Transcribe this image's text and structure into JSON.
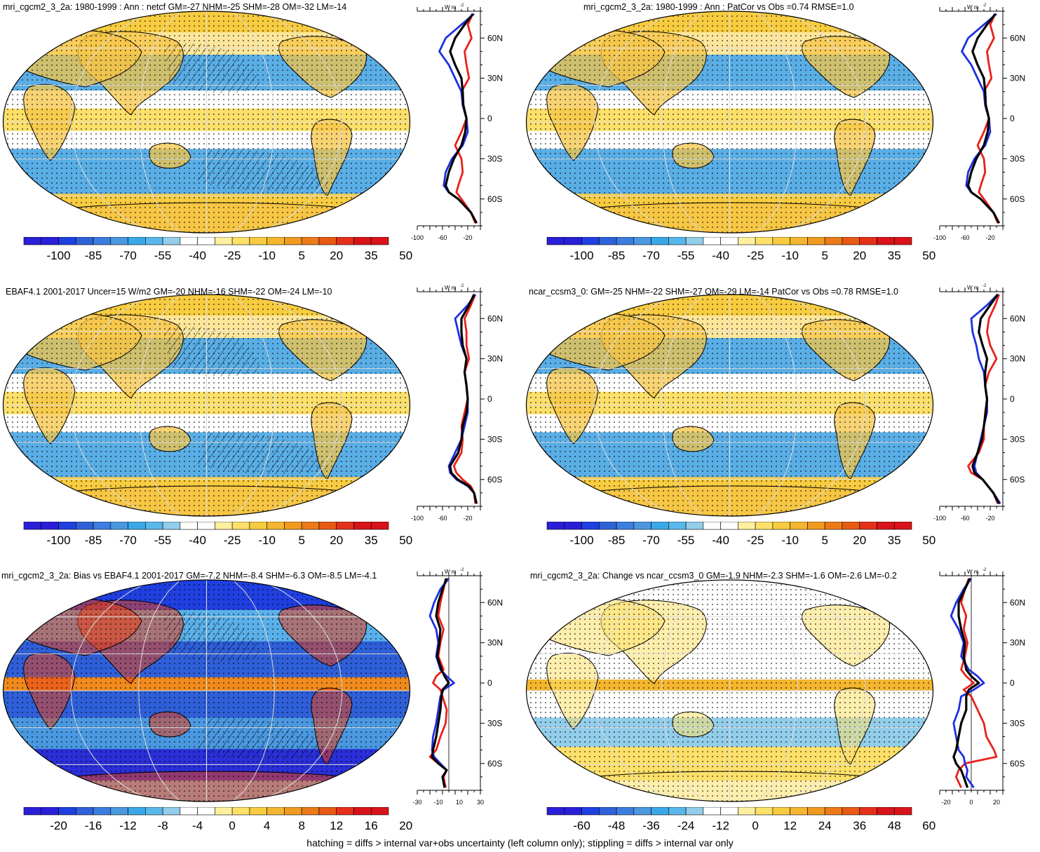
{
  "footer": "hatching = diffs > internal var+obs uncertainty (left column only); stippling = diffs > internal var only",
  "colors": {
    "palette": [
      "#2a1fd8",
      "#1f3fe0",
      "#2f62d8",
      "#3c7ee0",
      "#4a98e0",
      "#3aa8e8",
      "#58b8ec",
      "#92cdea",
      "#ffffff",
      "#ffffff",
      "#fff0a0",
      "#fce06a",
      "#f8cc40",
      "#f4b62e",
      "#f09a20",
      "#ec7a18",
      "#e85a14",
      "#e43018",
      "#d8141a"
    ],
    "ocean_neg": "#5aaee6",
    "land_pos": "#f6c445",
    "line_red": "#e8211b",
    "line_blue": "#1f2fe0",
    "line_black": "#000000"
  },
  "lat_ticks": [
    "60N",
    "30N",
    "0",
    "30S",
    "60S"
  ],
  "units_label": "W m",
  "units_exp": "-2",
  "chart_data": [
    {
      "type": "heatmap",
      "title": "mri_cgcm2_3_2a: 1980-1999 : Ann : netcf GM=-27 NHM=-25 SHM=-28 OM=-32 LM=-14",
      "colorbar_labels": [
        "-100",
        "-85",
        "-70",
        "-55",
        "-40",
        "-25",
        "-10",
        "5",
        "20",
        "35",
        "50"
      ],
      "zonal_xticks": [
        "-100",
        "-60",
        "-20"
      ],
      "zonal_xlim": [
        -100,
        0
      ],
      "hatched": true,
      "series": [
        {
          "name": "red",
          "lat": [
            78,
            70,
            60,
            50,
            40,
            30,
            20,
            10,
            0,
            -10,
            -20,
            -30,
            -40,
            -50,
            -55,
            -60,
            -70,
            -78
          ],
          "values": [
            -12,
            -20,
            -14,
            -25,
            -22,
            -18,
            -30,
            -28,
            -22,
            -30,
            -40,
            -30,
            -28,
            -35,
            -38,
            -30,
            -15,
            -8
          ]
        },
        {
          "name": "blue",
          "lat": [
            78,
            70,
            60,
            50,
            40,
            30,
            20,
            10,
            0,
            -10,
            -20,
            -30,
            -40,
            -50,
            -55,
            -60,
            -70,
            -78
          ],
          "values": [
            -10,
            -30,
            -55,
            -65,
            -50,
            -40,
            -30,
            -28,
            -22,
            -20,
            -28,
            -45,
            -55,
            -58,
            -50,
            -35,
            -15,
            -6
          ]
        },
        {
          "name": "black",
          "lat": [
            78,
            70,
            60,
            50,
            40,
            30,
            20,
            10,
            0,
            -10,
            -20,
            -30,
            -40,
            -50,
            -55,
            -60,
            -70,
            -78
          ],
          "values": [
            -12,
            -25,
            -40,
            -48,
            -40,
            -30,
            -28,
            -27,
            -22,
            -24,
            -30,
            -42,
            -50,
            -55,
            -50,
            -35,
            -15,
            -6
          ]
        }
      ]
    },
    {
      "type": "heatmap",
      "title": "mri_cgcm2_3_2a: 1980-1999 : Ann : PatCor vs Obs =0.74 RMSE=1.0",
      "colorbar_labels": [
        "-100",
        "-85",
        "-70",
        "-55",
        "-40",
        "-25",
        "-10",
        "5",
        "20",
        "35",
        "50"
      ],
      "zonal_xticks": [
        "-100",
        "-60",
        "-20"
      ],
      "zonal_xlim": [
        -100,
        0
      ],
      "hatched": false,
      "series": [
        {
          "name": "red",
          "lat": [
            78,
            70,
            60,
            50,
            40,
            30,
            20,
            10,
            0,
            -10,
            -20,
            -30,
            -40,
            -50,
            -55,
            -60,
            -70,
            -78
          ],
          "values": [
            -12,
            -20,
            -14,
            -25,
            -22,
            -18,
            -30,
            -28,
            -22,
            -30,
            -40,
            -30,
            -28,
            -35,
            -38,
            -30,
            -15,
            -8
          ]
        },
        {
          "name": "blue",
          "lat": [
            78,
            70,
            60,
            50,
            40,
            30,
            20,
            10,
            0,
            -10,
            -20,
            -30,
            -40,
            -50,
            -55,
            -60,
            -70,
            -78
          ],
          "values": [
            -10,
            -30,
            -55,
            -65,
            -50,
            -40,
            -30,
            -28,
            -22,
            -20,
            -28,
            -45,
            -55,
            -58,
            -50,
            -35,
            -15,
            -6
          ]
        },
        {
          "name": "black",
          "lat": [
            78,
            70,
            60,
            50,
            40,
            30,
            20,
            10,
            0,
            -10,
            -20,
            -30,
            -40,
            -50,
            -55,
            -60,
            -70,
            -78
          ],
          "values": [
            -12,
            -25,
            -40,
            -48,
            -40,
            -30,
            -28,
            -27,
            -22,
            -24,
            -30,
            -42,
            -50,
            -55,
            -50,
            -35,
            -15,
            -6
          ]
        }
      ]
    },
    {
      "type": "heatmap",
      "title": "EBAF4.1 2001-2017 Uncer=15 W/m2 GM=-20 NHM=-16 SHM=-22 OM=-24 LM=-10",
      "colorbar_labels": [
        "-100",
        "-85",
        "-70",
        "-55",
        "-40",
        "-25",
        "-10",
        "5",
        "20",
        "35",
        "50"
      ],
      "zonal_xticks": [
        "-100",
        "-60",
        "-20"
      ],
      "zonal_xlim": [
        -100,
        0
      ],
      "hatched": true,
      "series": [
        {
          "name": "red",
          "lat": [
            78,
            70,
            60,
            50,
            40,
            30,
            20,
            10,
            0,
            -10,
            -20,
            -30,
            -40,
            -50,
            -55,
            -60,
            -65,
            -70,
            -78
          ],
          "values": [
            -8,
            -15,
            -25,
            -22,
            -22,
            -18,
            -25,
            -22,
            -20,
            -25,
            -30,
            -28,
            -30,
            -42,
            -38,
            -28,
            -15,
            -10,
            -8
          ]
        },
        {
          "name": "blue",
          "lat": [
            78,
            70,
            60,
            50,
            40,
            30,
            20,
            10,
            0,
            -10,
            -20,
            -30,
            -40,
            -50,
            -55,
            -60,
            -65,
            -70,
            -78
          ],
          "values": [
            -8,
            -20,
            -40,
            -35,
            -30,
            -22,
            -25,
            -22,
            -20,
            -20,
            -25,
            -30,
            -40,
            -50,
            -48,
            -38,
            -20,
            -10,
            -6
          ]
        },
        {
          "name": "black",
          "lat": [
            78,
            70,
            60,
            50,
            40,
            30,
            20,
            10,
            0,
            -10,
            -20,
            -30,
            -40,
            -50,
            -55,
            -60,
            -65,
            -70,
            -78
          ],
          "values": [
            -10,
            -18,
            -30,
            -30,
            -28,
            -22,
            -25,
            -22,
            -20,
            -22,
            -28,
            -30,
            -35,
            -48,
            -46,
            -36,
            -18,
            -10,
            -6
          ]
        }
      ]
    },
    {
      "type": "heatmap",
      "title": "ncar_ccsm3_0: GM=-25 NHM=-22 SHM=-27 OM=-29 LM=-14 PatCor vs Obs =0.78 RMSE=1.0",
      "colorbar_labels": [
        "-100",
        "-85",
        "-70",
        "-55",
        "-40",
        "-25",
        "-10",
        "5",
        "20",
        "35",
        "50"
      ],
      "zonal_xticks": [
        "-100",
        "-60",
        "-20"
      ],
      "zonal_xlim": [
        -100,
        0
      ],
      "hatched": false,
      "series": [
        {
          "name": "red",
          "lat": [
            78,
            70,
            60,
            50,
            40,
            30,
            20,
            10,
            0,
            -10,
            -20,
            -30,
            -40,
            -50,
            -55,
            -60,
            -70,
            -78
          ],
          "values": [
            -6,
            -12,
            -22,
            -25,
            -20,
            -10,
            -22,
            -28,
            -25,
            -28,
            -30,
            -30,
            -38,
            -55,
            -50,
            -32,
            -15,
            -8
          ]
        },
        {
          "name": "blue",
          "lat": [
            78,
            70,
            60,
            50,
            40,
            30,
            20,
            10,
            0,
            -10,
            -20,
            -30,
            -40,
            -50,
            -55,
            -60,
            -70,
            -78
          ],
          "values": [
            -8,
            -25,
            -50,
            -48,
            -42,
            -38,
            -30,
            -28,
            -25,
            -25,
            -30,
            -35,
            -40,
            -45,
            -42,
            -32,
            -15,
            -4
          ]
        },
        {
          "name": "black",
          "lat": [
            78,
            70,
            60,
            50,
            40,
            30,
            20,
            10,
            0,
            -10,
            -20,
            -30,
            -40,
            -50,
            -55,
            -60,
            -70,
            -78
          ],
          "values": [
            -8,
            -20,
            -35,
            -38,
            -32,
            -25,
            -28,
            -28,
            -25,
            -27,
            -30,
            -33,
            -40,
            -48,
            -45,
            -32,
            -15,
            -6
          ]
        }
      ]
    },
    {
      "type": "heatmap",
      "title": "mri_cgcm2_3_2a: Bias vs EBAF4.1 2001-2017 GM=-7.2 NHM=-8.4 SHM=-6.3 OM=-8.5 LM=-4.1",
      "colorbar_labels": [
        "-20",
        "-16",
        "-12",
        "-8",
        "-4",
        "0",
        "4",
        "8",
        "12",
        "16",
        "20"
      ],
      "zonal_xticks": [
        "-30",
        "-10",
        "10",
        "30"
      ],
      "zonal_xlim": [
        -30,
        30
      ],
      "hatched": true,
      "zero_line": true,
      "series": [
        {
          "name": "red",
          "lat": [
            78,
            70,
            60,
            50,
            40,
            30,
            20,
            10,
            5,
            0,
            -5,
            -10,
            -20,
            -30,
            -40,
            -50,
            -55,
            -60,
            -65,
            -70,
            -78
          ],
          "values": [
            -3,
            -5,
            -8,
            -10,
            -5,
            -8,
            -10,
            -5,
            -12,
            -15,
            -8,
            -6,
            -2,
            -3,
            -8,
            -12,
            -18,
            -10,
            -2,
            -5,
            -3
          ]
        },
        {
          "name": "blue",
          "lat": [
            78,
            70,
            60,
            50,
            40,
            30,
            20,
            10,
            5,
            0,
            -5,
            -10,
            -20,
            -30,
            -40,
            -50,
            -55,
            -60,
            -65,
            -70,
            -78
          ],
          "values": [
            0,
            -8,
            -14,
            -18,
            -12,
            -10,
            -12,
            -8,
            -2,
            5,
            -5,
            -8,
            -10,
            -12,
            -15,
            -16,
            -14,
            -8,
            -2,
            -6,
            -4
          ]
        },
        {
          "name": "black",
          "lat": [
            78,
            70,
            60,
            50,
            40,
            30,
            20,
            10,
            5,
            0,
            -5,
            -10,
            -20,
            -30,
            -40,
            -50,
            -55,
            -60,
            -65,
            -70,
            -78
          ],
          "values": [
            -2,
            -6,
            -10,
            -12,
            -8,
            -9,
            -11,
            -7,
            -4,
            0,
            -6,
            -7,
            -8,
            -10,
            -12,
            -15,
            -16,
            -10,
            -2,
            -6,
            -4
          ]
        }
      ]
    },
    {
      "type": "heatmap",
      "title": "mri_cgcm2_3_2a: Change vs ncar_ccsm3_0 GM=-1.9 NHM=-2.3 SHM=-1.6 OM=-2.6 LM=-0.2",
      "colorbar_labels": [
        "-60",
        "-48",
        "-36",
        "-24",
        "-12",
        "0",
        "12",
        "24",
        "36",
        "48",
        "60"
      ],
      "zonal_xticks": [
        "-20",
        "0",
        "20"
      ],
      "zonal_xlim": [
        -25,
        25
      ],
      "hatched": false,
      "zero_line": true,
      "series": [
        {
          "name": "red",
          "lat": [
            78,
            70,
            60,
            50,
            40,
            30,
            20,
            10,
            5,
            0,
            -5,
            -10,
            -20,
            -30,
            -40,
            -50,
            -55,
            -60,
            -65,
            -70,
            -78
          ],
          "values": [
            -2,
            -5,
            -8,
            -4,
            -6,
            -3,
            -5,
            -8,
            -4,
            2,
            -6,
            0,
            5,
            10,
            12,
            18,
            20,
            -5,
            -10,
            -12,
            -8
          ]
        },
        {
          "name": "blue",
          "lat": [
            78,
            70,
            60,
            50,
            40,
            30,
            20,
            10,
            5,
            0,
            -5,
            -10,
            -20,
            -30,
            -40,
            -50,
            -55,
            -60,
            -65,
            -70,
            -78
          ],
          "values": [
            0,
            -6,
            -12,
            -16,
            -10,
            -6,
            -8,
            -2,
            5,
            10,
            2,
            -8,
            -10,
            -14,
            -12,
            -10,
            -6,
            -5,
            -3,
            -4,
            2
          ]
        },
        {
          "name": "black",
          "lat": [
            78,
            70,
            60,
            50,
            40,
            30,
            20,
            10,
            5,
            0,
            -5,
            -10,
            -20,
            -30,
            -40,
            -50,
            -55,
            -60,
            -65,
            -70,
            -78
          ],
          "values": [
            -1,
            -5,
            -10,
            -10,
            -8,
            -5,
            -6,
            -4,
            0,
            6,
            -2,
            -4,
            -4,
            -8,
            -10,
            -12,
            -14,
            -12,
            -8,
            -6,
            -3
          ]
        }
      ]
    }
  ]
}
